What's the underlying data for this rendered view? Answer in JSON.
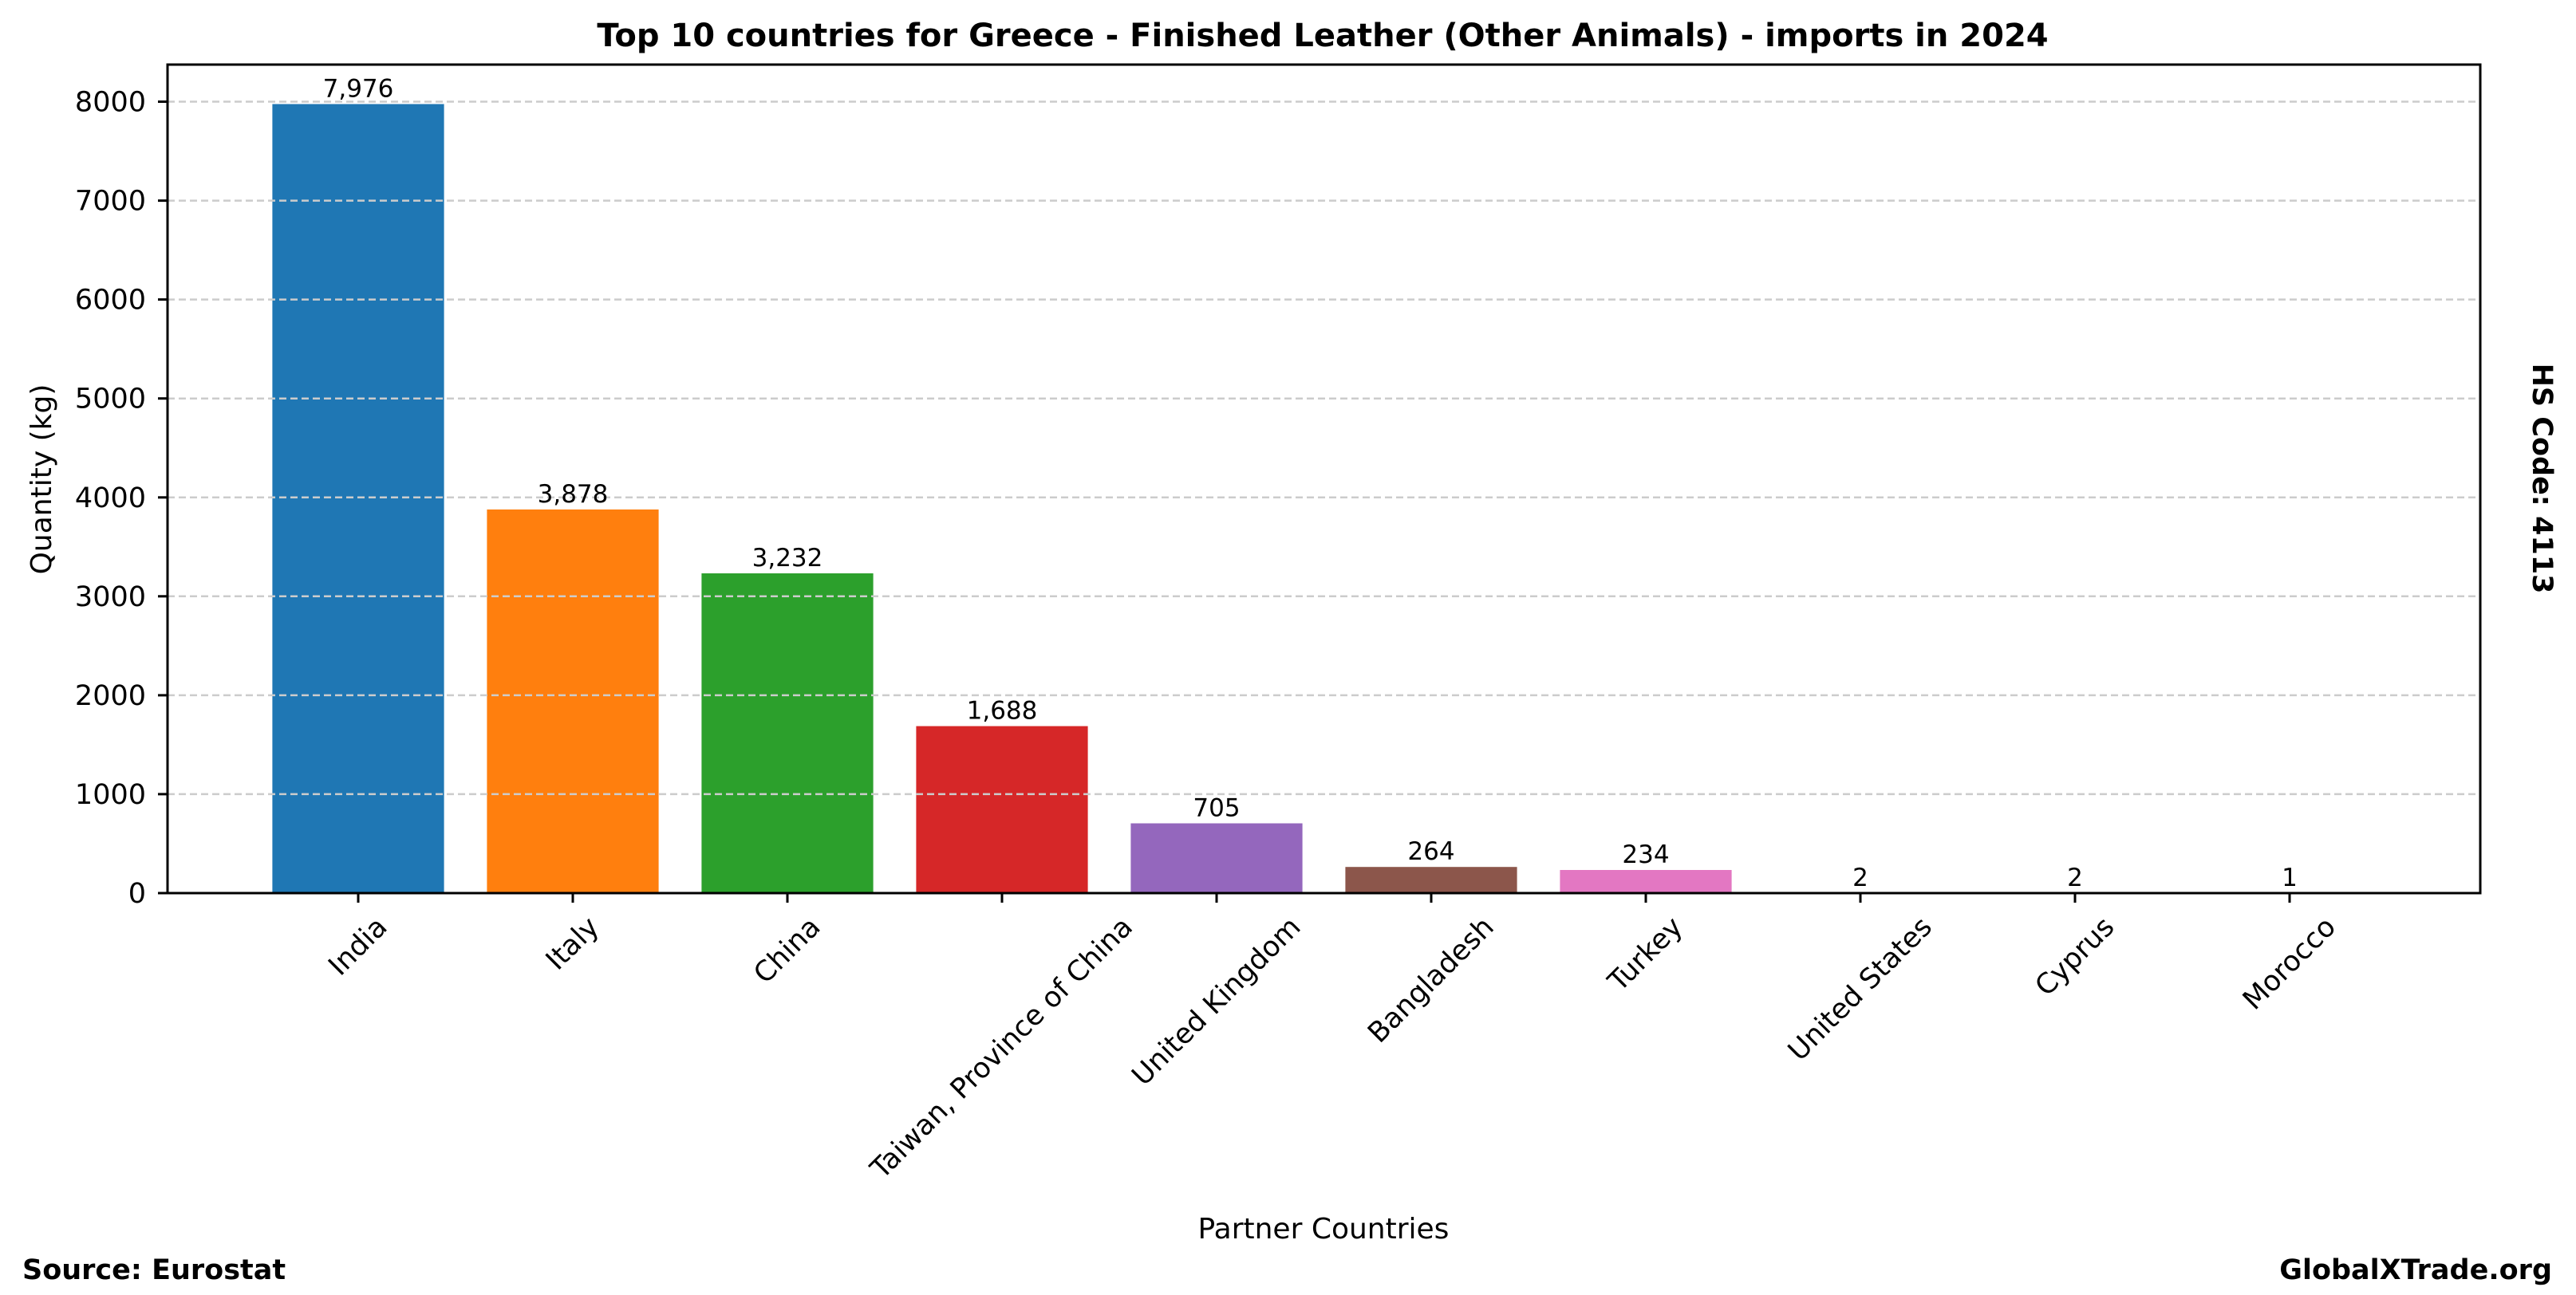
{
  "chart_data": {
    "type": "bar",
    "title": "Top 10 countries for Greece - Finished Leather (Other Animals) - imports in 2024",
    "xlabel": "Partner Countries",
    "ylabel": "Quantity (kg)",
    "ylim": [
      0,
      8375
    ],
    "yticks": [
      0,
      1000,
      2000,
      3000,
      4000,
      5000,
      6000,
      7000,
      8000
    ],
    "ytick_labels": [
      "0",
      "1000",
      "2000",
      "3000",
      "4000",
      "5000",
      "6000",
      "7000",
      "8000"
    ],
    "grid": "y-dashed",
    "categories": [
      "India",
      "Italy",
      "China",
      "Taiwan, Province of China",
      "United Kingdom",
      "Bangladesh",
      "Turkey",
      "United States",
      "Cyprus",
      "Morocco"
    ],
    "values": [
      7976,
      3878,
      3232,
      1688,
      705,
      264,
      234,
      2,
      2,
      1
    ],
    "data_labels": [
      "7,976",
      "3,878",
      "3,232",
      "1,688",
      "705",
      "264",
      "234",
      "2",
      "2",
      "1"
    ],
    "colors": [
      "#1f77b4",
      "#ff7f0e",
      "#2ca02c",
      "#d62728",
      "#9467bd",
      "#8c564b",
      "#e377c2",
      "#7f7f7f",
      "#bcbd22",
      "#17becf"
    ],
    "tick_label_rotation": 45
  },
  "side_note": "HS Code: 4113",
  "footer": {
    "source": "Source: Eurostat",
    "brand": "GlobalXTrade.org"
  },
  "colors": {
    "grid": "#cccccc",
    "text": "#000000",
    "background": "#ffffff"
  }
}
